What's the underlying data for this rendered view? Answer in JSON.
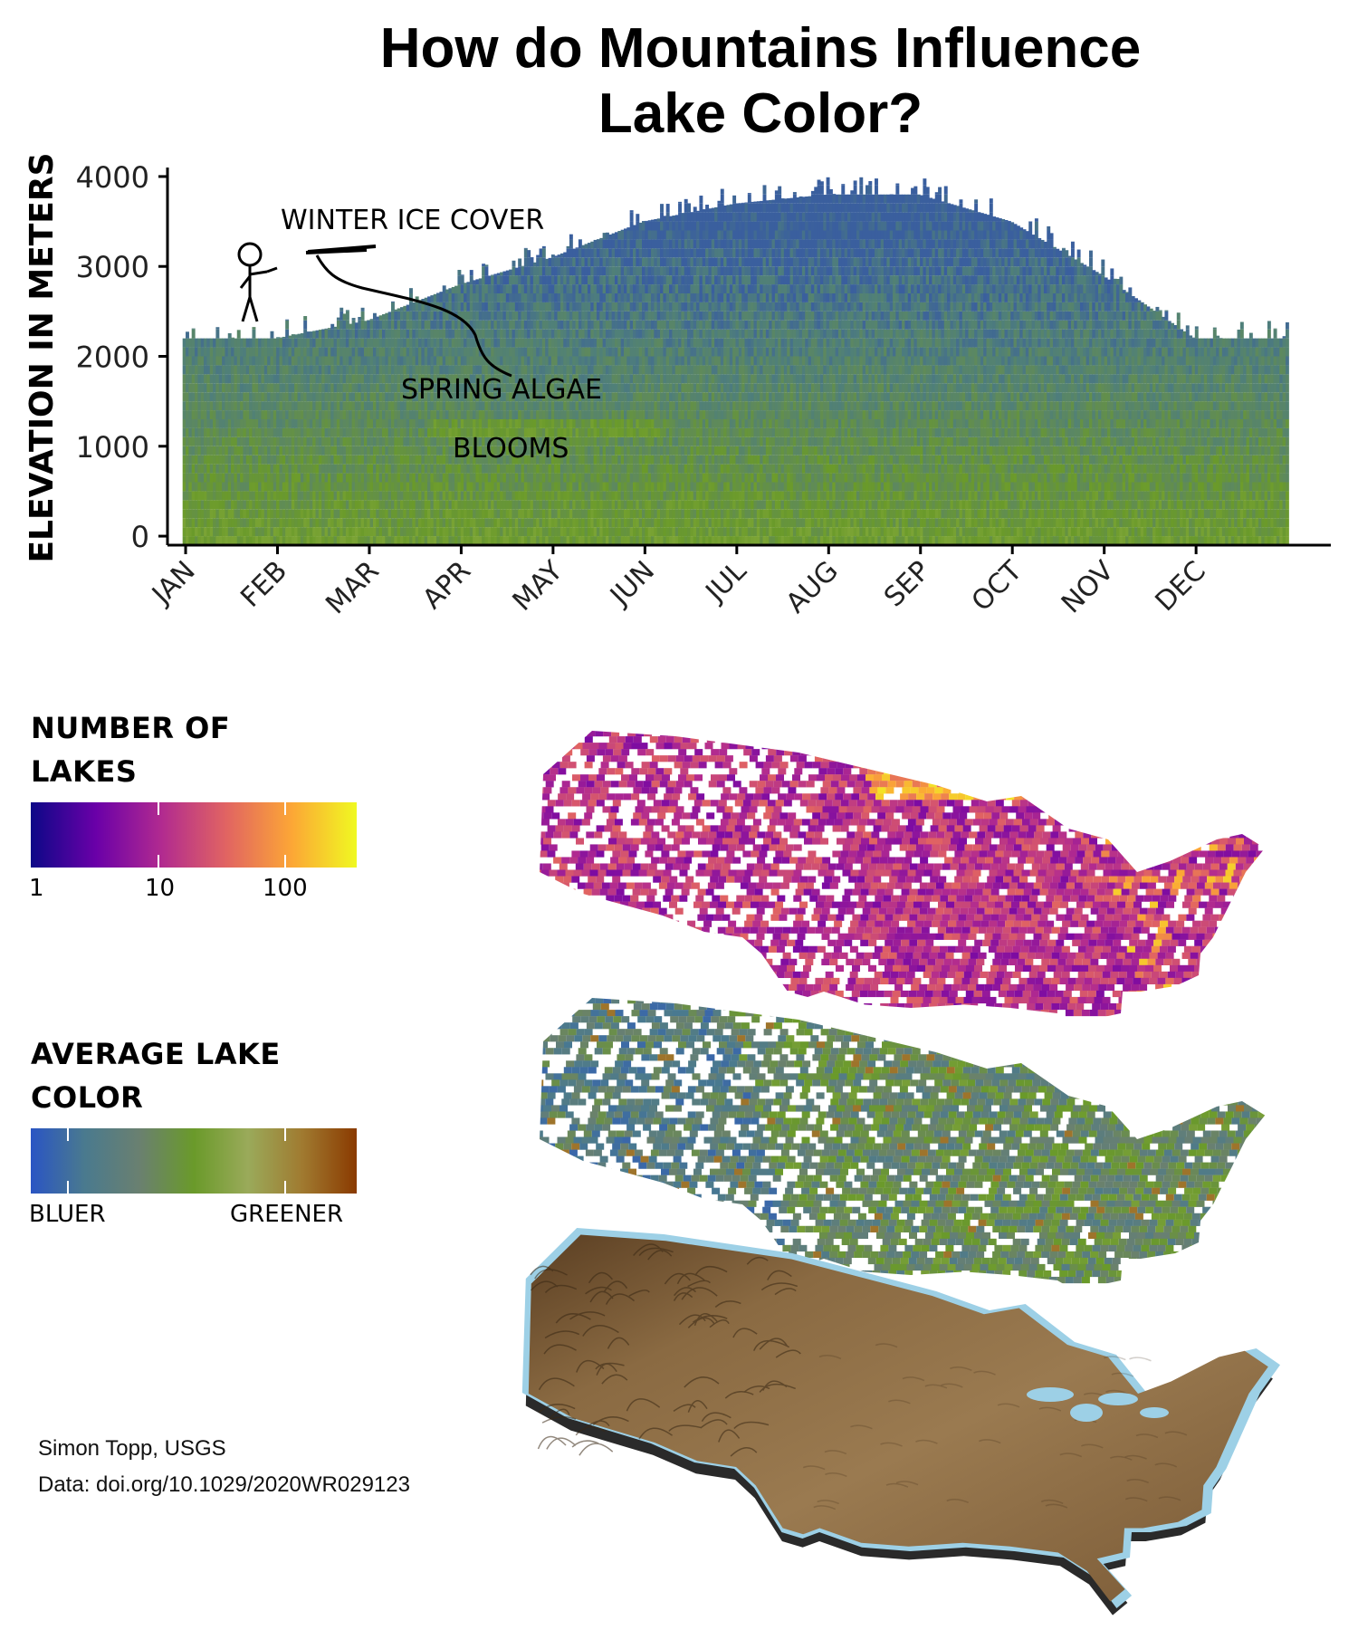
{
  "title_lines": [
    "How do Mountains Influence",
    "Lake Color?"
  ],
  "chart_data": {
    "type": "heatmap",
    "title": "How do Mountains Influence Lake Color?",
    "ylabel": "ELEVATION IN METERS",
    "xlabel": "",
    "y_ticks": [
      0,
      1000,
      2000,
      3000,
      4000
    ],
    "ylim": [
      -100,
      4100
    ],
    "x_ticks": [
      "JAN",
      "FEB",
      "MAR",
      "APR",
      "MAY",
      "JUN",
      "JUL",
      "AUG",
      "SEP",
      "OCT",
      "NOV",
      "DEC"
    ],
    "xlim_day": [
      -5,
      380
    ],
    "max_elevation_by_month": [
      {
        "month": "JAN",
        "elevation": 2200
      },
      {
        "month": "FEB",
        "elevation": 2200
      },
      {
        "month": "MAR",
        "elevation": 2400
      },
      {
        "month": "APR",
        "elevation": 2800
      },
      {
        "month": "MAY",
        "elevation": 3100
      },
      {
        "month": "JUN",
        "elevation": 3500
      },
      {
        "month": "JUL",
        "elevation": 3700
      },
      {
        "month": "AUG",
        "elevation": 3800
      },
      {
        "month": "SEP",
        "elevation": 3800
      },
      {
        "month": "OCT",
        "elevation": 3500
      },
      {
        "month": "NOV",
        "elevation": 2900
      },
      {
        "month": "DEC",
        "elevation": 2200
      }
    ],
    "color_scale": {
      "low": "BLUER",
      "high": "GREENER"
    },
    "annotations": [
      "WINTER ICE COVER",
      "SPRING ALGAE",
      "BLOOMS"
    ],
    "grid": false
  },
  "legend_count": {
    "title": "NUMBER OF\n LAKES",
    "labels": [
      "1",
      "10",
      "100"
    ],
    "colors": [
      "#0d0887",
      "#6a00a8",
      "#b12a90",
      "#e16462",
      "#fca636",
      "#f0f921"
    ]
  },
  "legend_color": {
    "title": "AVERAGE LAKE\nCOLOR",
    "low_label": "BLUER",
    "high_label": "GREENER",
    "colors": [
      "#2a55c4",
      "#4a7a8e",
      "#6a8070",
      "#6a9a2a",
      "#9aaa5a",
      "#a07a30",
      "#8a3a00"
    ]
  },
  "credits": {
    "author": "Simon Topp, USGS",
    "data": "Data: doi.org/10.1029/2020WR029123"
  },
  "palette": {
    "blue": "#3a5f9e",
    "teal": "#4f7f7a",
    "green": "#6a9a2a",
    "olive": "#7c9a4a",
    "water": "#9dd0e6",
    "terrain": "#7a5a36"
  }
}
